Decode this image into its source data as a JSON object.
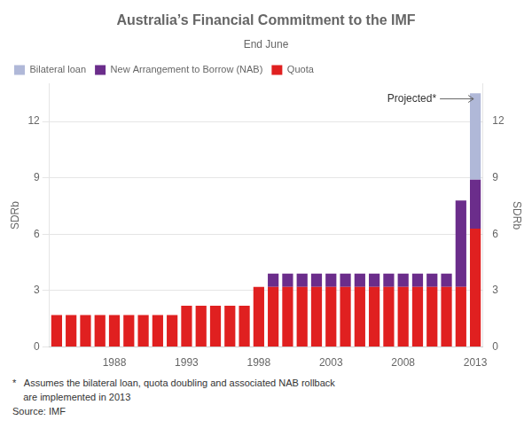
{
  "chart_data": {
    "type": "bar",
    "stacked": true,
    "title": "Australia’s Financial Commitment to the IMF",
    "subtitle": "End June",
    "ylabel": "SDRb",
    "y2label": "SDRb",
    "categories": [
      null,
      null,
      null,
      null,
      "1988",
      null,
      null,
      null,
      null,
      "1993",
      null,
      null,
      null,
      null,
      "1998",
      null,
      null,
      null,
      null,
      "2003",
      null,
      null,
      null,
      null,
      "2008",
      null,
      null,
      null,
      null,
      "2013"
    ],
    "series": [
      {
        "name": "Quota",
        "color": "#E02020",
        "values": [
          1.7,
          1.7,
          1.7,
          1.7,
          1.7,
          1.7,
          1.7,
          1.7,
          1.7,
          2.2,
          2.2,
          2.2,
          2.2,
          2.2,
          3.2,
          3.2,
          3.2,
          3.2,
          3.2,
          3.2,
          3.2,
          3.2,
          3.2,
          3.2,
          3.2,
          3.2,
          3.2,
          3.2,
          3.2,
          6.3
        ]
      },
      {
        "name": "New Arrangement to Borrow (NAB)",
        "color": "#6B2D8B",
        "values": [
          0.0,
          0.0,
          0.0,
          0.0,
          0.0,
          0.0,
          0.0,
          0.0,
          0.0,
          0.0,
          0.0,
          0.0,
          0.0,
          0.0,
          0.0,
          0.7,
          0.7,
          0.7,
          0.7,
          0.7,
          0.7,
          0.7,
          0.7,
          0.7,
          0.7,
          0.7,
          0.7,
          0.7,
          4.6,
          2.6
        ]
      },
      {
        "name": "Bilateral loan",
        "color": "#B0B8D8",
        "values": [
          0.0,
          0.0,
          0.0,
          0.0,
          0.0,
          0.0,
          0.0,
          0.0,
          0.0,
          0.0,
          0.0,
          0.0,
          0.0,
          0.0,
          0.0,
          0.0,
          0.0,
          0.0,
          0.0,
          0.0,
          0.0,
          0.0,
          0.0,
          0.0,
          0.0,
          0.0,
          0.0,
          0.0,
          0.0,
          4.6
        ]
      }
    ],
    "ylim": [
      0,
      14
    ],
    "yticks": [
      0,
      3,
      6,
      9,
      12
    ],
    "y2lim": [
      0,
      14
    ],
    "y2ticks": [
      0,
      3,
      6,
      9,
      12
    ],
    "grid": "y",
    "legend": "upper left",
    "annotations": [
      {
        "text": "Projected*",
        "x": "2013",
        "y": 13.2
      }
    ],
    "footnotes": [
      "*   Assumes the bilateral loan, quota doubling and associated NAB rollback",
      "    are implemented in 2013",
      "Source: IMF"
    ]
  }
}
